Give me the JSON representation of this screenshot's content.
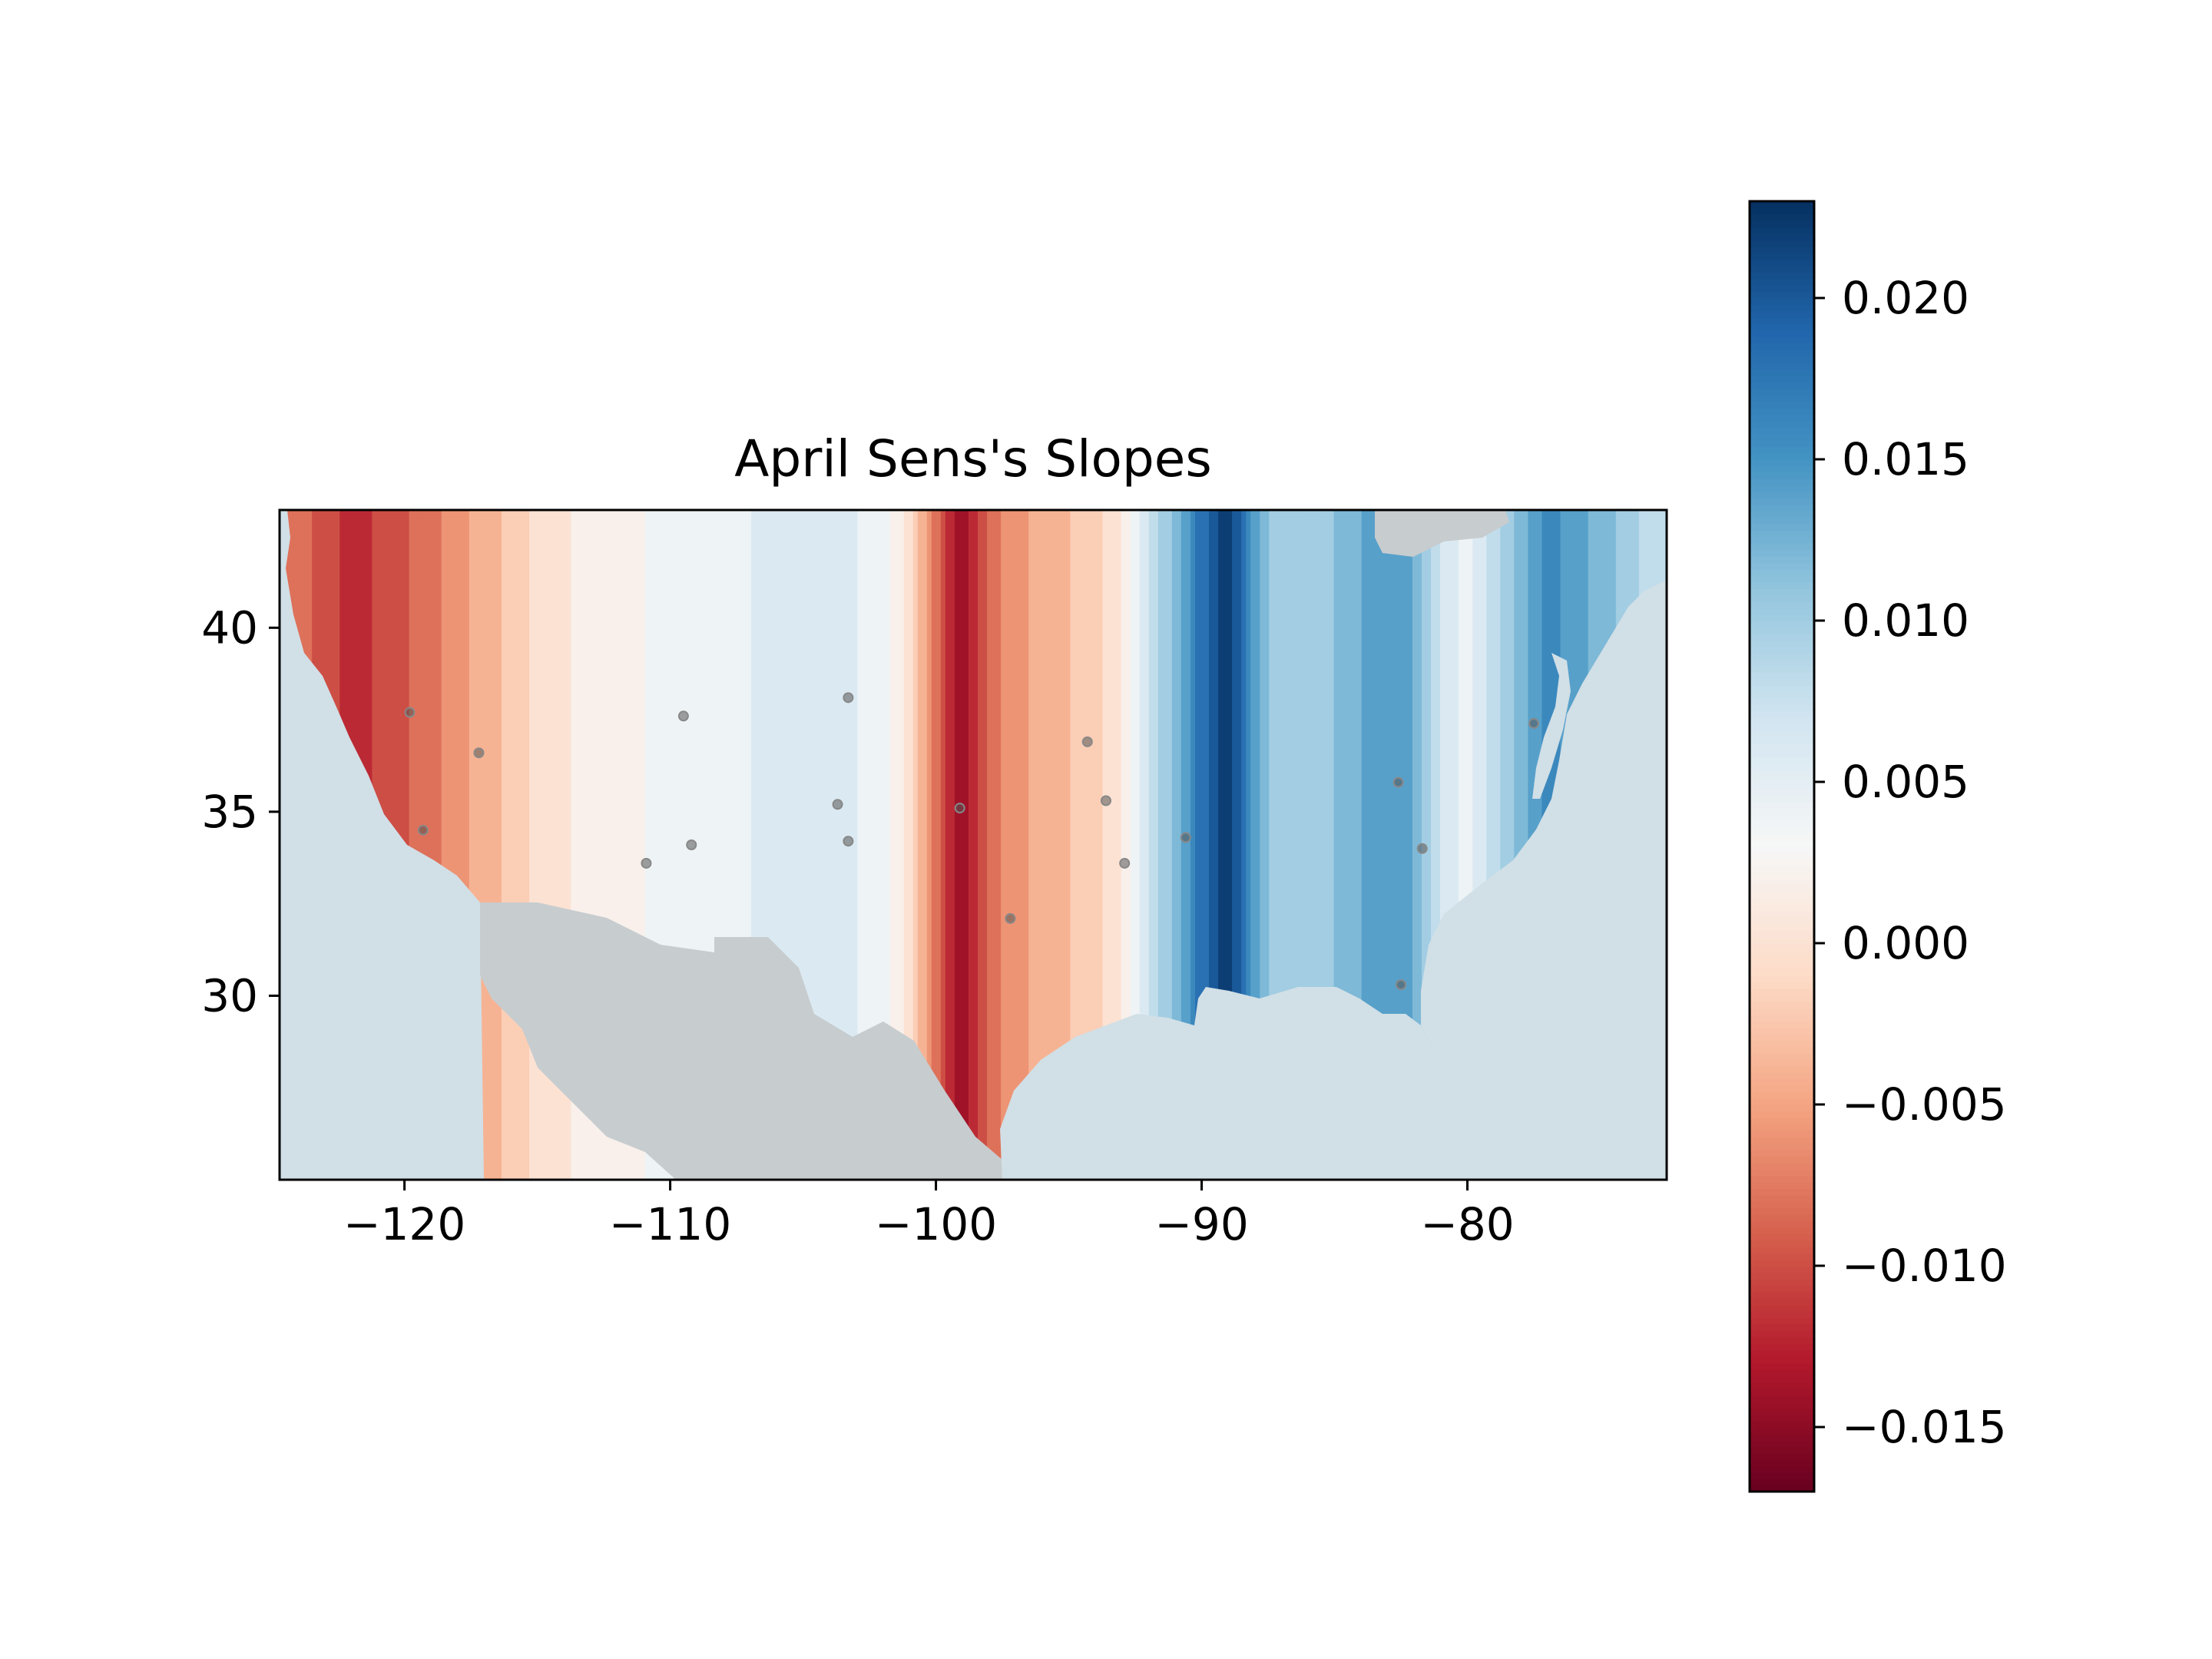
{
  "chart_data": {
    "type": "heatmap",
    "title": "April Sens's Slopes",
    "xlabel": "",
    "ylabel": "",
    "xlim": [
      -124.7,
      -72.5
    ],
    "ylim": [
      25.0,
      43.2
    ],
    "x_ticks": [
      -120,
      -110,
      -100,
      -90,
      -80
    ],
    "x_tick_labels": [
      "−120",
      "−110",
      "−100",
      "−90",
      "−80"
    ],
    "y_ticks": [
      30,
      35,
      40
    ],
    "y_tick_labels": [
      "30",
      "35",
      "40"
    ],
    "grid": false,
    "colormap": "RdBu",
    "colorbar": {
      "range": [
        -0.017,
        0.023
      ],
      "ticks": [
        -0.015,
        -0.01,
        -0.005,
        0.0,
        0.005,
        0.01,
        0.015,
        0.02
      ],
      "tick_labels": [
        "−0.015",
        "−0.010",
        "−0.005",
        "0.000",
        "0.005",
        "0.010",
        "0.015",
        "0.020"
      ],
      "colors": [
        "#67001f",
        "#b2182b",
        "#d6604d",
        "#f4a582",
        "#fddbc7",
        "#f7f7f7",
        "#d1e5f0",
        "#92c5de",
        "#4393c3",
        "#2166ac",
        "#053061"
      ]
    },
    "stations": [
      {
        "lon": -119.8,
        "lat": 37.7
      },
      {
        "lon": -117.2,
        "lat": 36.6
      },
      {
        "lon": -119.3,
        "lat": 34.5
      },
      {
        "lon": -109.5,
        "lat": 37.6
      },
      {
        "lon": -109.2,
        "lat": 34.1
      },
      {
        "lon": -110.9,
        "lat": 33.6
      },
      {
        "lon": -103.3,
        "lat": 38.1
      },
      {
        "lon": -103.7,
        "lat": 35.2
      },
      {
        "lon": -103.3,
        "lat": 34.2
      },
      {
        "lon": -99.1,
        "lat": 35.1
      },
      {
        "lon": -97.2,
        "lat": 32.1
      },
      {
        "lon": -94.3,
        "lat": 36.9
      },
      {
        "lon": -93.6,
        "lat": 35.3
      },
      {
        "lon": -92.9,
        "lat": 33.6
      },
      {
        "lon": -90.6,
        "lat": 34.3
      },
      {
        "lon": -82.6,
        "lat": 35.8
      },
      {
        "lon": -81.7,
        "lat": 34.0
      },
      {
        "lon": -82.5,
        "lat": 30.3
      },
      {
        "lon": -77.5,
        "lat": 37.4
      }
    ],
    "colors": {
      "ocean": "#d1dfe6",
      "foreign_land": "#c7cccf",
      "station": "#555555"
    }
  }
}
